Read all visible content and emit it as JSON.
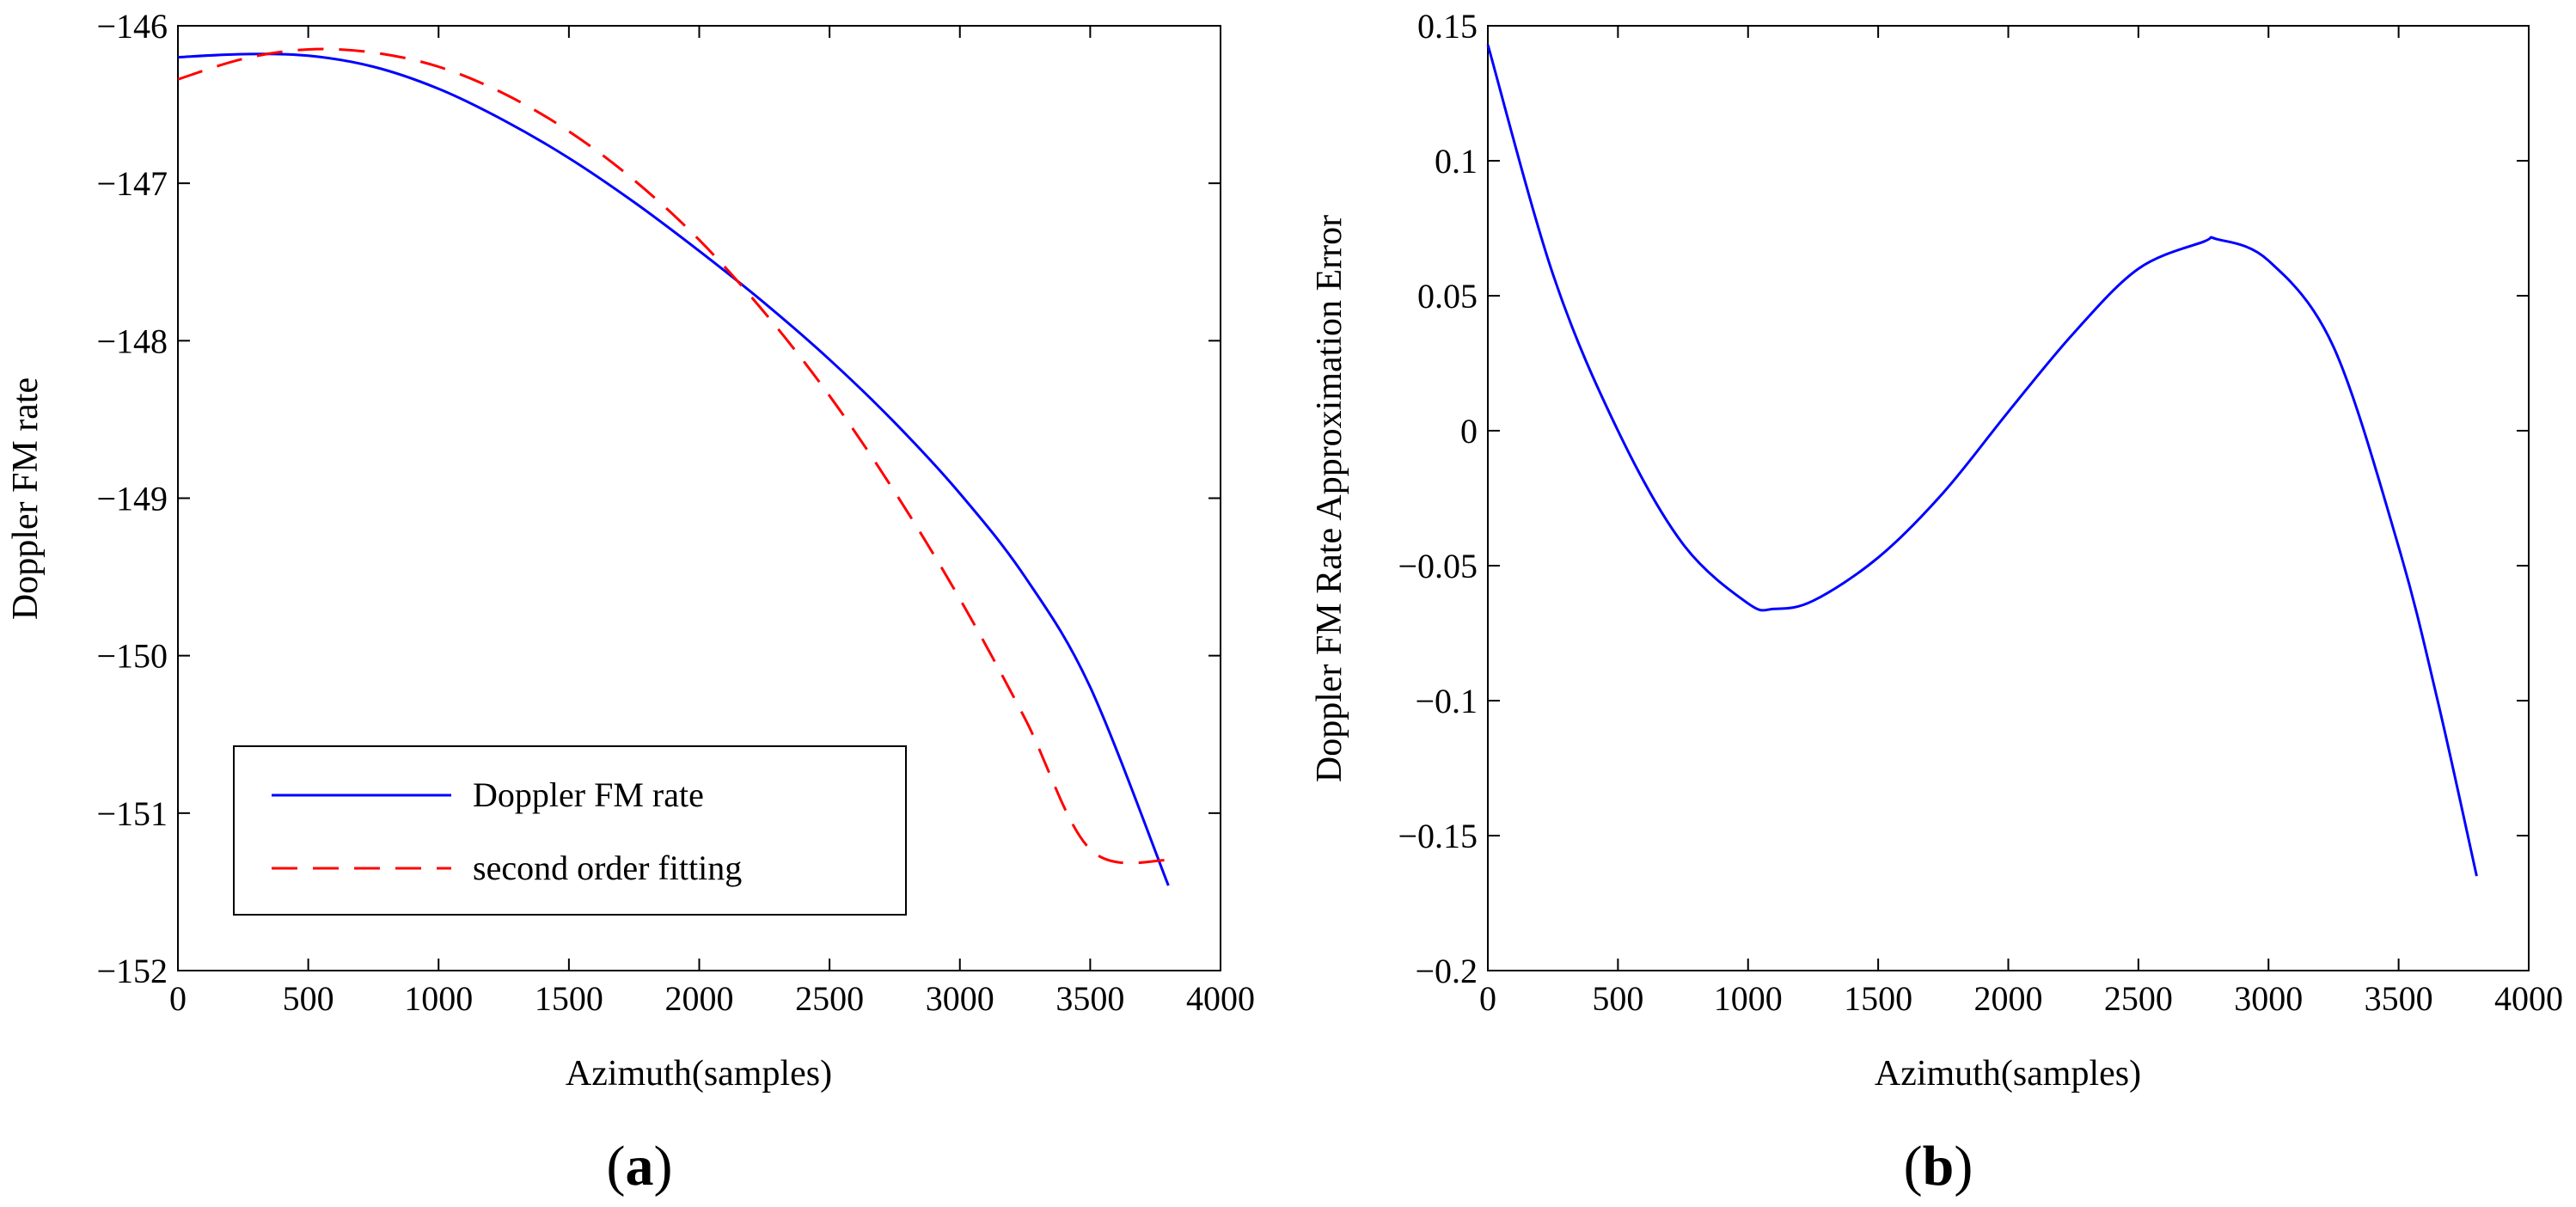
{
  "chart_data": [
    {
      "type": "line",
      "panel_label": "(a)",
      "panel_letter": "a",
      "xlabel": "Azimuth(samples)",
      "ylabel": "Doppler FM rate",
      "xlim": [
        0,
        4000
      ],
      "ylim": [
        -152,
        -146
      ],
      "xticks": [
        0,
        500,
        1000,
        1500,
        2000,
        2500,
        3000,
        3500,
        4000
      ],
      "yticks": [
        -152,
        -151,
        -150,
        -149,
        -148,
        -147,
        -146
      ],
      "xtick_labels": [
        "0",
        "500",
        "1000",
        "1500",
        "2000",
        "2500",
        "3000",
        "3500",
        "4000"
      ],
      "ytick_labels": [
        "−152",
        "−151",
        "−150",
        "−149",
        "−148",
        "−147",
        "−146"
      ],
      "grid": false,
      "legend_position": "bottom-left",
      "series": [
        {
          "name": "Doppler FM rate",
          "color": "#0000ff",
          "style": "solid",
          "x": [
            0,
            250,
            500,
            750,
            1000,
            1250,
            1500,
            1750,
            2000,
            2250,
            2500,
            2750,
            3000,
            3250,
            3500,
            3800
          ],
          "y": [
            -146.2,
            -146.18,
            -146.19,
            -146.26,
            -146.4,
            -146.6,
            -146.84,
            -147.12,
            -147.43,
            -147.76,
            -148.12,
            -148.52,
            -148.97,
            -149.5,
            -150.2,
            -151.46
          ]
        },
        {
          "name": "second order fitting",
          "color": "#ff0000",
          "style": "dashed",
          "x": [
            0,
            250,
            500,
            750,
            1000,
            1250,
            1500,
            1750,
            2000,
            2250,
            2500,
            2750,
            3000,
            3250,
            3500,
            3800
          ],
          "y": [
            -146.34,
            -146.21,
            -146.15,
            -146.17,
            -146.26,
            -146.43,
            -146.67,
            -146.98,
            -147.36,
            -147.82,
            -148.35,
            -148.96,
            -149.64,
            -150.4,
            -151.23,
            -151.3
          ]
        }
      ]
    },
    {
      "type": "line",
      "panel_label": "(b)",
      "panel_letter": "b",
      "xlabel": "Azimuth(samples)",
      "ylabel": "Doppler FM Rate Approximation Error",
      "xlim": [
        0,
        4000
      ],
      "ylim": [
        -0.2,
        0.15
      ],
      "xticks": [
        0,
        500,
        1000,
        1500,
        2000,
        2500,
        3000,
        3500,
        4000
      ],
      "yticks": [
        -0.2,
        -0.15,
        -0.1,
        -0.05,
        0,
        0.05,
        0.1,
        0.15
      ],
      "xtick_labels": [
        "0",
        "500",
        "1000",
        "1500",
        "2000",
        "2500",
        "3000",
        "3500",
        "4000"
      ],
      "ytick_labels": [
        "−0.2",
        "−0.15",
        "−0.1",
        "−0.05",
        "0",
        "0.05",
        "0.1",
        "0.15"
      ],
      "grid": false,
      "series": [
        {
          "name": "Approximation Error",
          "color": "#0000ff",
          "style": "solid",
          "x": [
            0,
            250,
            500,
            750,
            1000,
            1100,
            1250,
            1500,
            1750,
            2000,
            2250,
            2500,
            2750,
            2800,
            3000,
            3250,
            3500,
            3650,
            3800
          ],
          "y": [
            0.143,
            0.058,
            0.0,
            -0.042,
            -0.064,
            -0.066,
            -0.063,
            -0.047,
            -0.023,
            0.007,
            0.036,
            0.06,
            0.07,
            0.071,
            0.063,
            0.031,
            -0.043,
            -0.1,
            -0.165
          ]
        }
      ]
    }
  ]
}
